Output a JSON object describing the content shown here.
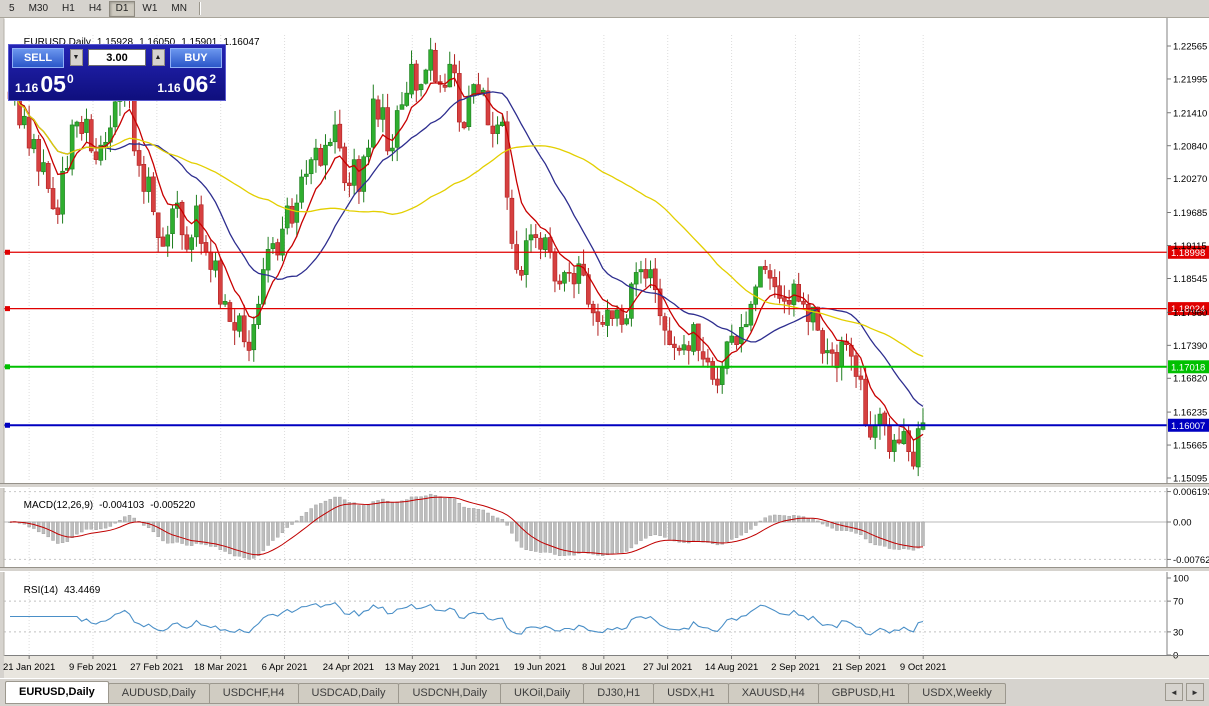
{
  "toolbar": {
    "timeframes": [
      "5",
      "M30",
      "H1",
      "H4",
      "D1",
      "W1",
      "MN"
    ],
    "active": "D1"
  },
  "chart_header": {
    "symbol": "EURUSD,Daily",
    "open": "1.15928",
    "high": "1.16050",
    "low": "1.15901",
    "close": "1.16047"
  },
  "trade_panel": {
    "sell_label": "SELL",
    "buy_label": "BUY",
    "volume": "3.00",
    "spin_down": "▼",
    "spin_up": "▲",
    "sell_price": {
      "big": "1.16",
      "mid": "05",
      "sup": "0"
    },
    "buy_price": {
      "big": "1.16",
      "mid": "06",
      "sup": "2"
    }
  },
  "indicators": {
    "macd_label": "MACD(12,26,9)",
    "macd_value": "-0.004103",
    "macd_signal": "-0.005220",
    "rsi_label": "RSI(14)",
    "rsi_value": "43.4469"
  },
  "chart_data": {
    "type": "candlestick",
    "symbol": "EURUSD",
    "timeframe": "Daily",
    "closes": [
      1.2165,
      1.218,
      1.212,
      1.2135,
      1.208,
      1.2095,
      1.204,
      1.2055,
      1.201,
      1.1975,
      1.1965,
      1.204,
      1.2045,
      1.212,
      1.2125,
      1.2105,
      1.213,
      1.2075,
      1.206,
      1.2085,
      1.209,
      1.2115,
      1.216,
      1.2175,
      1.2205,
      1.217,
      1.2075,
      1.205,
      1.2005,
      1.203,
      1.197,
      1.1925,
      1.191,
      1.193,
      1.1975,
      1.1985,
      1.193,
      1.1905,
      1.1925,
      1.198,
      1.1915,
      1.19,
      1.187,
      1.1885,
      1.181,
      1.1815,
      1.178,
      1.1765,
      1.179,
      1.1745,
      1.173,
      1.1775,
      1.181,
      1.187,
      1.1905,
      1.1915,
      1.1895,
      1.194,
      1.198,
      1.195,
      1.1985,
      1.203,
      1.2035,
      1.206,
      1.208,
      1.205,
      1.2085,
      1.209,
      1.212,
      1.208,
      1.202,
      1.2015,
      1.206,
      1.2005,
      1.2065,
      1.208,
      1.2165,
      1.213,
      1.215,
      1.2075,
      1.208,
      1.2145,
      1.2155,
      1.2175,
      1.2225,
      1.218,
      1.219,
      1.2215,
      1.225,
      1.2195,
      1.219,
      1.2185,
      1.2225,
      1.221,
      1.2125,
      1.2115,
      1.217,
      1.219,
      1.2175,
      1.218,
      1.212,
      1.2105,
      1.212,
      1.2125,
      1.1995,
      1.1915,
      1.187,
      1.186,
      1.192,
      1.193,
      1.1925,
      1.1905,
      1.1925,
      1.19,
      1.185,
      1.1845,
      1.1865,
      1.1865,
      1.1845,
      1.188,
      1.186,
      1.181,
      1.1795,
      1.178,
      1.1775,
      1.18,
      1.1785,
      1.18,
      1.1775,
      1.1785,
      1.1845,
      1.1865,
      1.187,
      1.1855,
      1.187,
      1.1835,
      1.179,
      1.1765,
      1.174,
      1.1735,
      1.173,
      1.174,
      1.173,
      1.1775,
      1.173,
      1.1715,
      1.171,
      1.168,
      1.167,
      1.17,
      1.1745,
      1.1755,
      1.174,
      1.177,
      1.1775,
      1.181,
      1.184,
      1.1875,
      1.187,
      1.1855,
      1.184,
      1.182,
      1.1815,
      1.181,
      1.1845,
      1.1815,
      1.181,
      1.178,
      1.1805,
      1.1765,
      1.1725,
      1.173,
      1.1725,
      1.17,
      1.1745,
      1.174,
      1.172,
      1.1685,
      1.168,
      1.16,
      1.158,
      1.16,
      1.162,
      1.16,
      1.1555,
      1.1575,
      1.157,
      1.159,
      1.1555,
      1.153,
      1.1595,
      1.1605
    ],
    "price_axis_labels": [
      "1.22565",
      "1.21995",
      "1.21410",
      "1.20840",
      "1.20270",
      "1.19685",
      "1.19115",
      "1.18545",
      "1.17960",
      "1.17390",
      "1.16820",
      "1.16235",
      "1.15665",
      "1.15095"
    ],
    "macd_axis_labels": [
      "0.006193",
      "0.00",
      "-0.00762"
    ],
    "rsi_axis_labels": [
      "100",
      "70",
      "30",
      "0"
    ],
    "date_labels": [
      "21 Jan 2021",
      "9 Feb 2021",
      "27 Feb 2021",
      "18 Mar 2021",
      "6 Apr 2021",
      "24 Apr 2021",
      "13 May 2021",
      "1 Jun 2021",
      "19 Jun 2021",
      "8 Jul 2021",
      "27 Jul 2021",
      "14 Aug 2021",
      "2 Sep 2021",
      "21 Sep 2021",
      "9 Oct 2021"
    ],
    "hlines": [
      {
        "price": "1.18998",
        "color": "#e00000",
        "width": 1.2
      },
      {
        "price": "1.18024",
        "color": "#e00000",
        "width": 1.2
      },
      {
        "price": "1.17018",
        "color": "#00c000",
        "width": 2
      },
      {
        "price": "1.16007",
        "color": "#0000c0",
        "width": 2
      }
    ],
    "moving_averages": [
      {
        "period": 8,
        "method": "ema",
        "color": "#c80000"
      },
      {
        "period": 21,
        "method": "sma",
        "color": "#2e2e8f"
      },
      {
        "period": 55,
        "method": "sma",
        "color": "#e3cf00"
      }
    ],
    "macd_settings": "12,26,9",
    "rsi_settings": "14",
    "colors": {
      "up_fill": "#2fae2f",
      "up_stroke": "#1e7d1e",
      "down_fill": "#d64040",
      "down_stroke": "#b02020",
      "macd_hist": "#bdbdbd",
      "macd_hist_stroke": "#9a9a9a",
      "macd_signal": "#c00000",
      "rsi_line": "#4a8fc7",
      "grid": "#dcdcdc"
    }
  },
  "tabs": {
    "items": [
      {
        "label": "EURUSD,Daily",
        "active": true
      },
      {
        "label": "AUDUSD,Daily",
        "active": false
      },
      {
        "label": "USDCHF,H4",
        "active": false
      },
      {
        "label": "USDCAD,Daily",
        "active": false
      },
      {
        "label": "USDCNH,Daily",
        "active": false
      },
      {
        "label": "UKOil,Daily",
        "active": false
      },
      {
        "label": "DJ30,H1",
        "active": false
      },
      {
        "label": "USDX,H1",
        "active": false
      },
      {
        "label": "XAUUSD,H4",
        "active": false
      },
      {
        "label": "GBPUSD,H1",
        "active": false
      },
      {
        "label": "USDX,Weekly",
        "active": false
      }
    ],
    "scroll_left": "◄",
    "scroll_right": "►"
  }
}
